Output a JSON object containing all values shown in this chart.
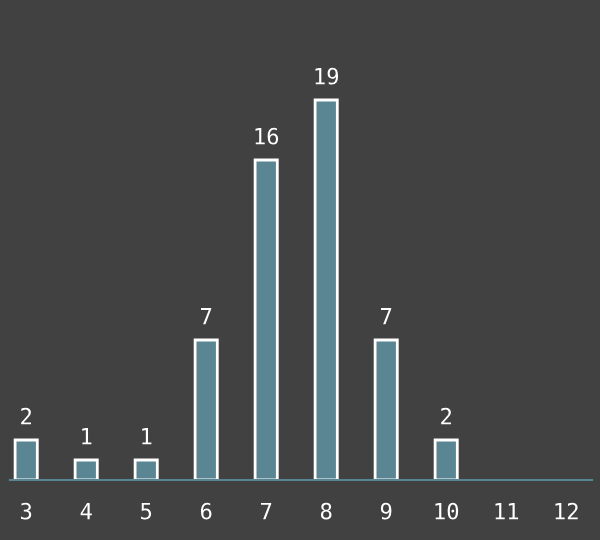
{
  "chart_data": {
    "type": "bar",
    "categories": [
      "3",
      "4",
      "5",
      "6",
      "7",
      "8",
      "9",
      "10",
      "11",
      "12"
    ],
    "values": [
      2,
      1,
      1,
      7,
      16,
      19,
      7,
      2,
      null,
      null
    ],
    "color": "#5a8593",
    "data_labels": true,
    "grid": false,
    "legend": false
  }
}
